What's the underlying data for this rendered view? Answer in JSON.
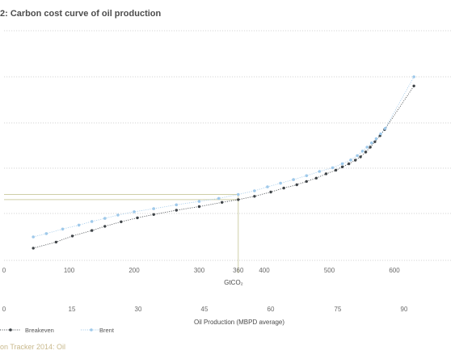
{
  "title": "2: Carbon cost curve of oil production",
  "source": "on Tracker 2014: Oil",
  "chart_data": {
    "type": "line",
    "title": "2: Carbon cost curve of oil production",
    "grid": true,
    "legend_placement": "bottom-left",
    "x_axis_top": {
      "label": "GtCO₂",
      "ticks": [
        "0",
        "100",
        "200",
        "300",
        "360",
        "400",
        "500",
        "600"
      ]
    },
    "x_axis_bottom": {
      "label": "Oil Production (MBPD average)",
      "ticks": [
        "0",
        "15",
        "30",
        "45",
        "60",
        "75",
        "90"
      ]
    },
    "xlim": [
      0,
      650
    ],
    "ylim": [
      0,
      6
    ],
    "reference": {
      "x": 360,
      "label": "360"
    },
    "series": [
      {
        "name": "Breakeven",
        "color": "#3f4448",
        "points": [
          [
            45,
            0.35
          ],
          [
            80,
            0.55
          ],
          [
            105,
            0.75
          ],
          [
            135,
            0.93
          ],
          [
            155,
            1.07
          ],
          [
            180,
            1.22
          ],
          [
            205,
            1.35
          ],
          [
            230,
            1.46
          ],
          [
            265,
            1.6
          ],
          [
            300,
            1.72
          ],
          [
            335,
            1.86
          ],
          [
            360,
            1.95
          ],
          [
            385,
            2.06
          ],
          [
            410,
            2.2
          ],
          [
            430,
            2.33
          ],
          [
            450,
            2.44
          ],
          [
            465,
            2.55
          ],
          [
            480,
            2.66
          ],
          [
            495,
            2.8
          ],
          [
            510,
            2.92
          ],
          [
            520,
            3.03
          ],
          [
            530,
            3.13
          ],
          [
            540,
            3.25
          ],
          [
            548,
            3.36
          ],
          [
            556,
            3.52
          ],
          [
            563,
            3.68
          ],
          [
            570,
            3.86
          ],
          [
            578,
            4.06
          ],
          [
            585,
            4.26
          ],
          [
            630,
            5.7
          ]
        ]
      },
      {
        "name": "Brent",
        "color": "#9fc9ea",
        "points": [
          [
            45,
            0.72
          ],
          [
            65,
            0.83
          ],
          [
            90,
            0.98
          ],
          [
            115,
            1.11
          ],
          [
            135,
            1.23
          ],
          [
            155,
            1.33
          ],
          [
            175,
            1.44
          ],
          [
            200,
            1.55
          ],
          [
            230,
            1.65
          ],
          [
            265,
            1.78
          ],
          [
            300,
            1.89
          ],
          [
            330,
            1.99
          ],
          [
            360,
            2.12
          ],
          [
            385,
            2.24
          ],
          [
            405,
            2.37
          ],
          [
            425,
            2.49
          ],
          [
            445,
            2.61
          ],
          [
            465,
            2.74
          ],
          [
            485,
            2.88
          ],
          [
            505,
            3.0
          ],
          [
            520,
            3.13
          ],
          [
            533,
            3.26
          ],
          [
            543,
            3.4
          ],
          [
            551,
            3.55
          ],
          [
            558,
            3.68
          ],
          [
            565,
            3.82
          ],
          [
            572,
            3.96
          ],
          [
            579,
            4.12
          ],
          [
            586,
            4.3
          ],
          [
            630,
            6.0
          ]
        ]
      }
    ],
    "legend": [
      "Breakeven",
      "Brent"
    ]
  }
}
